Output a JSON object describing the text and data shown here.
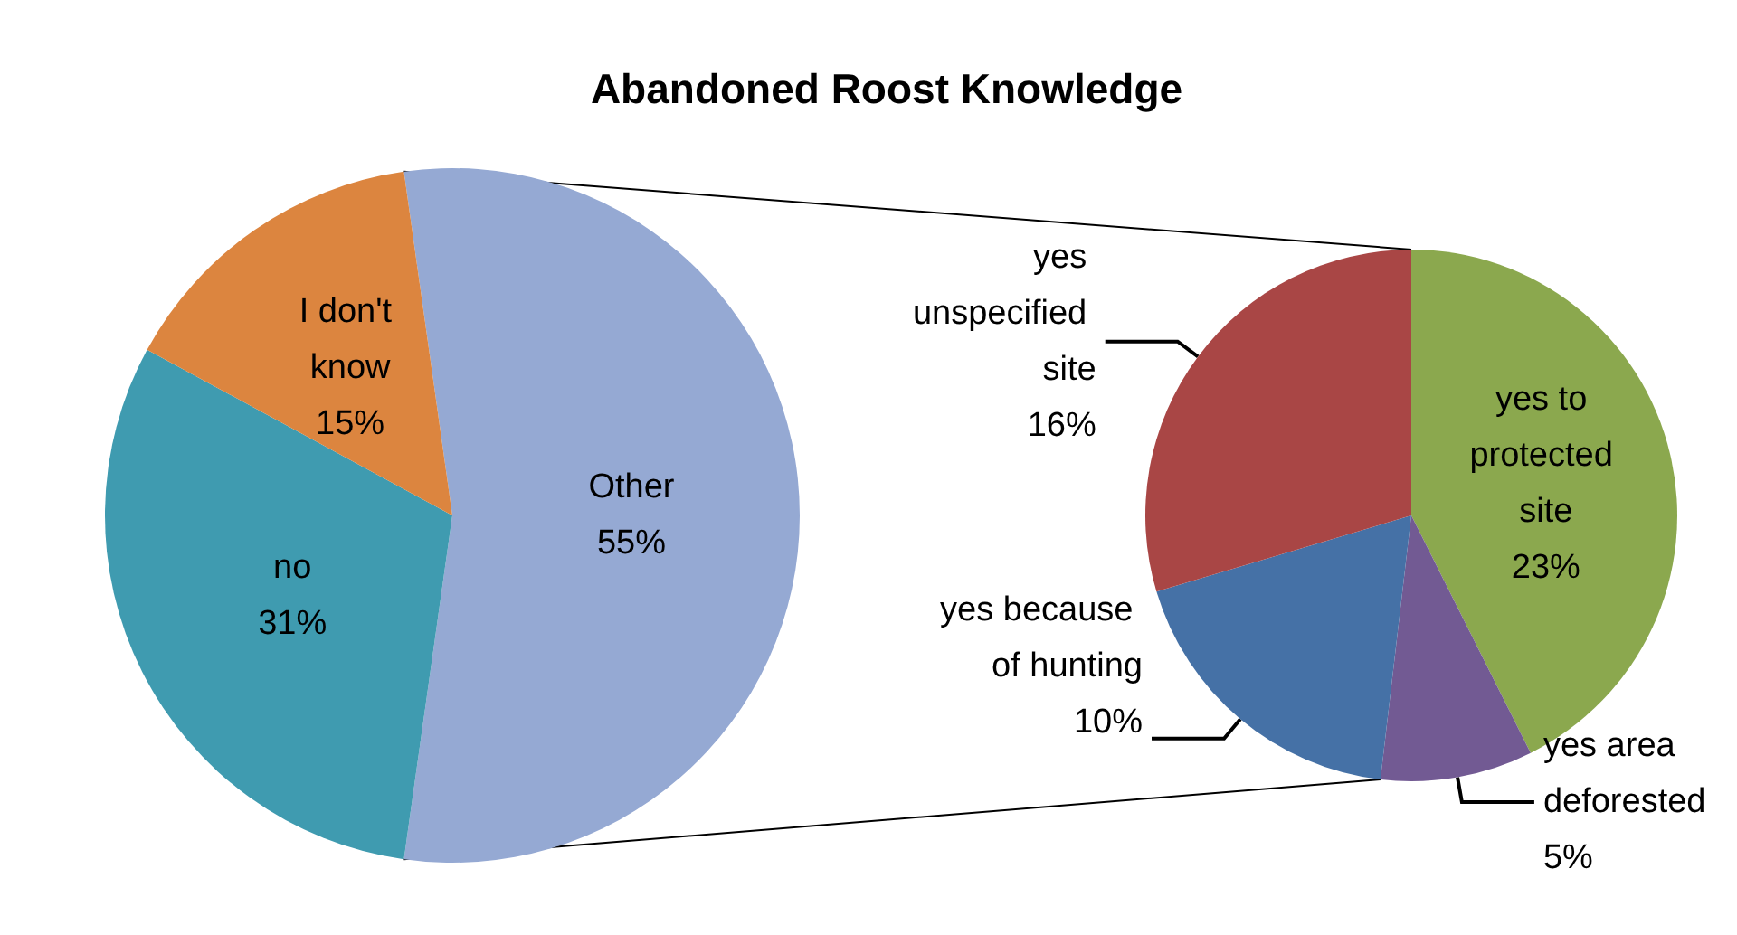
{
  "chart_data": [
    {
      "type": "pie",
      "title": "Abandoned Roost Knowledge",
      "categories": [
        "Other",
        "no",
        "I don't know"
      ],
      "values": [
        55,
        31,
        15
      ],
      "colors": [
        "#95a9d3",
        "#3f9bb0",
        "#dc853f"
      ],
      "value_labels": [
        "55%",
        "31%",
        "15%"
      ]
    },
    {
      "type": "pie",
      "categories": [
        "yes to protected site",
        "yes area deforested",
        "yes because of hunting",
        "yes unspecified site"
      ],
      "values": [
        23,
        5,
        10,
        16
      ],
      "colors": [
        "#8ba84e",
        "#725a93",
        "#4571a6",
        "#a94645"
      ],
      "value_labels": [
        "23%",
        "5%",
        "10%",
        "16%"
      ]
    }
  ]
}
